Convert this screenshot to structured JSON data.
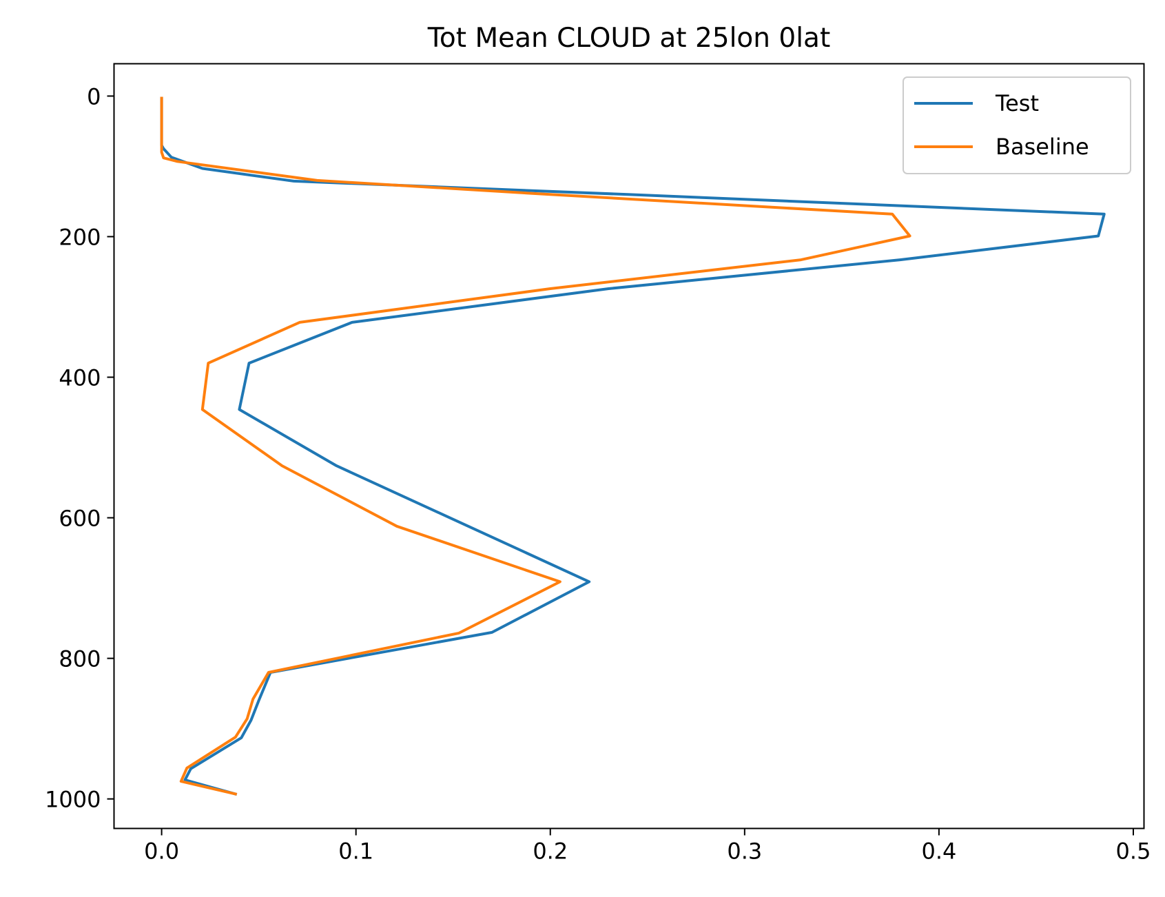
{
  "chart_data": {
    "type": "line",
    "title": "Tot Mean CLOUD at 25lon 0lat",
    "xlabel": "",
    "ylabel": "",
    "xlim": [
      -0.0245,
      0.5055
    ],
    "ylim": [
      1042,
      -46
    ],
    "y_inverted": true,
    "xticks": [
      0.0,
      0.1,
      0.2,
      0.3,
      0.4,
      0.5
    ],
    "xtick_labels": [
      "0.0",
      "0.1",
      "0.2",
      "0.3",
      "0.4",
      "0.5"
    ],
    "yticks": [
      0,
      200,
      400,
      600,
      800,
      1000
    ],
    "ytick_labels": [
      "0",
      "200",
      "400",
      "600",
      "800",
      "1000"
    ],
    "grid": false,
    "legend_position": "top-right",
    "series": [
      {
        "name": "Test",
        "color": "#1f77b4",
        "x": [
          0.0,
          0.0,
          0.0,
          0.0,
          0.001,
          0.005,
          0.021,
          0.068,
          0.24,
          0.485,
          0.482,
          0.38,
          0.23,
          0.098,
          0.045,
          0.04,
          0.09,
          0.22,
          0.17,
          0.056,
          0.05,
          0.046,
          0.041,
          0.015,
          0.012,
          0.038
        ],
        "y": [
          3,
          30,
          55,
          70,
          75,
          87,
          103,
          121,
          140,
          168,
          199,
          233,
          274,
          322,
          380,
          446,
          526,
          691,
          763,
          820,
          860,
          888,
          913,
          957,
          973,
          993
        ]
      },
      {
        "name": "Baseline",
        "color": "#ff7f0e",
        "x": [
          0.0,
          0.0,
          0.0,
          0.0,
          0.0,
          0.001,
          0.008,
          0.08,
          0.2,
          0.376,
          0.385,
          0.329,
          0.2,
          0.071,
          0.024,
          0.021,
          0.062,
          0.121,
          0.205,
          0.153,
          0.055,
          0.047,
          0.044,
          0.038,
          0.013,
          0.01,
          0.038
        ],
        "y": [
          3,
          30,
          55,
          70,
          80,
          88,
          93,
          120,
          140,
          168,
          199,
          233,
          274,
          322,
          380,
          446,
          526,
          612,
          691,
          764,
          820,
          858,
          886,
          912,
          956,
          975,
          993
        ]
      }
    ]
  }
}
